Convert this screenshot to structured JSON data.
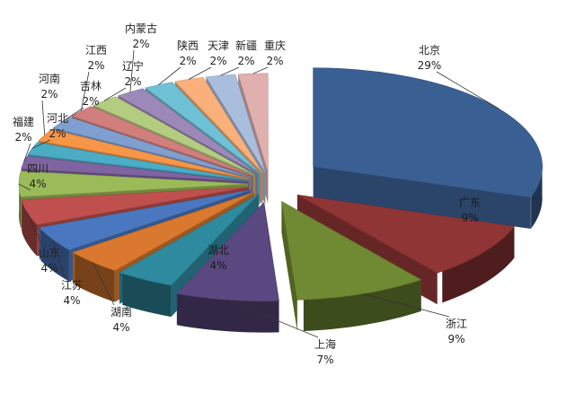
{
  "chart_data": {
    "type": "pie",
    "style": "3d-exploded",
    "title": "",
    "unit": "%",
    "legend": "none",
    "slices": [
      {
        "label": "北京",
        "value": 29,
        "value_label": "29%",
        "color": "#3a5f93"
      },
      {
        "label": "广东",
        "value": 9,
        "value_label": "9%",
        "color": "#8f3535"
      },
      {
        "label": "浙江",
        "value": 9,
        "value_label": "9%",
        "color": "#6f8a32"
      },
      {
        "label": "上海",
        "value": 7,
        "value_label": "7%",
        "color": "#5a4880"
      },
      {
        "label": "湖北",
        "value": 4,
        "value_label": "4%",
        "color": "#2e8a9e"
      },
      {
        "label": "湖南",
        "value": 4,
        "value_label": "4%",
        "color": "#d9782e"
      },
      {
        "label": "江苏",
        "value": 4,
        "value_label": "4%",
        "color": "#4a78c0"
      },
      {
        "label": "山东",
        "value": 4,
        "value_label": "4%",
        "color": "#c0504d"
      },
      {
        "label": "四川",
        "value": 4,
        "value_label": "4%",
        "color": "#9bbb59"
      },
      {
        "label": "福建",
        "value": 2,
        "value_label": "2%",
        "color": "#8064a2"
      },
      {
        "label": "河北",
        "value": 2,
        "value_label": "2%",
        "color": "#4bacc6"
      },
      {
        "label": "河南",
        "value": 2,
        "value_label": "2%",
        "color": "#f79646"
      },
      {
        "label": "吉林",
        "value": 2,
        "value_label": "2%",
        "color": "#7f9fd0"
      },
      {
        "label": "江西",
        "value": 2,
        "value_label": "2%",
        "color": "#d07f7d"
      },
      {
        "label": "辽宁",
        "value": 2,
        "value_label": "2%",
        "color": "#b3cc80"
      },
      {
        "label": "内蒙古",
        "value": 2,
        "value_label": "2%",
        "color": "#9d88ba"
      },
      {
        "label": "陕西",
        "value": 2,
        "value_label": "2%",
        "color": "#6fc1d6"
      },
      {
        "label": "天津",
        "value": 2,
        "value_label": "2%",
        "color": "#f9b07a"
      },
      {
        "label": "新疆",
        "value": 2,
        "value_label": "2%",
        "color": "#a9bedd"
      },
      {
        "label": "重庆",
        "value": 2,
        "value_label": "2%",
        "color": "#e0b0ae"
      }
    ]
  }
}
